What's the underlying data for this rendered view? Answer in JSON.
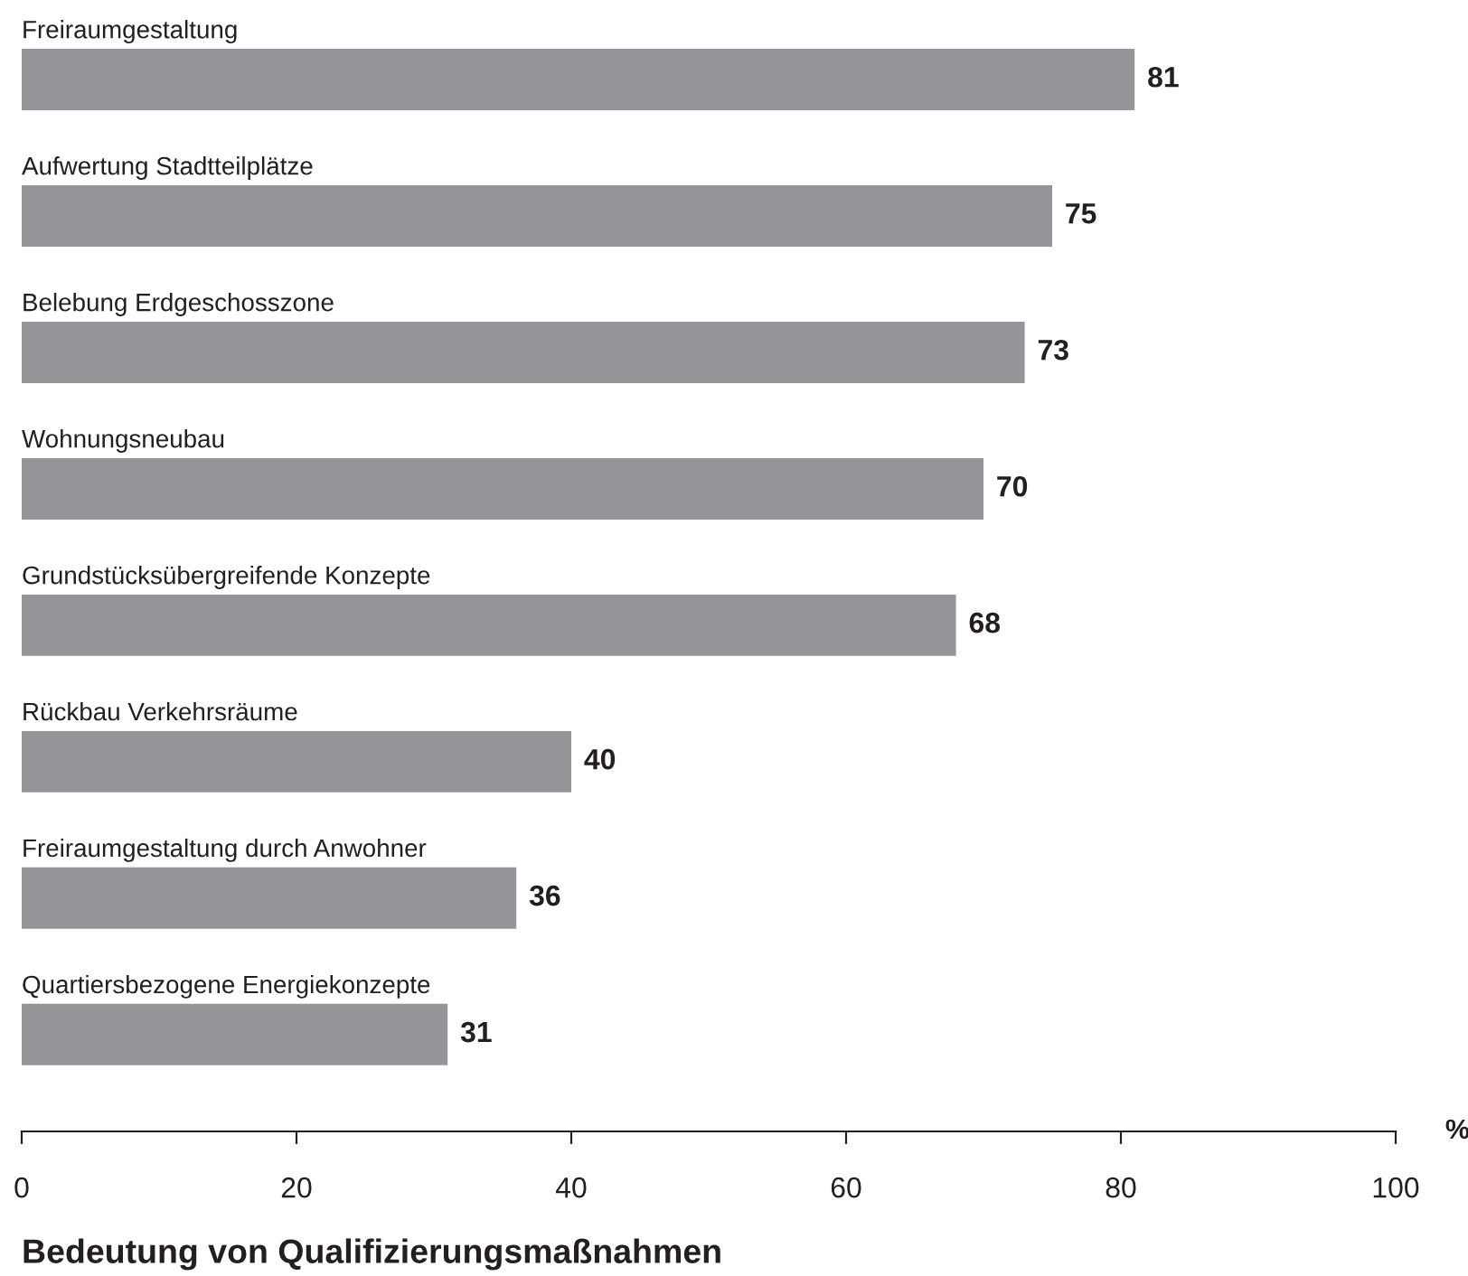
{
  "chart_data": {
    "type": "bar",
    "orientation": "horizontal",
    "title": "Bedeutung von Qualifizierungsmaßnahmen",
    "xlabel": "%",
    "categories": [
      "Freiraumgestaltung",
      "Aufwertung Stadtteilplätze",
      "Belebung Erdgeschosszone",
      "Wohnungsneubau",
      "Grundstücksübergreifende Konzepte",
      "Rückbau Verkehrsräume",
      "Freiraumgestaltung durch Anwohner",
      "Quartiersbezogene Energiekonzepte"
    ],
    "values": [
      81,
      75,
      73,
      70,
      68,
      40,
      36,
      31
    ],
    "color": "#939598",
    "xlim": [
      0,
      100
    ],
    "xticks": [
      0,
      20,
      40,
      60,
      80,
      100
    ],
    "data_labels": true
  }
}
